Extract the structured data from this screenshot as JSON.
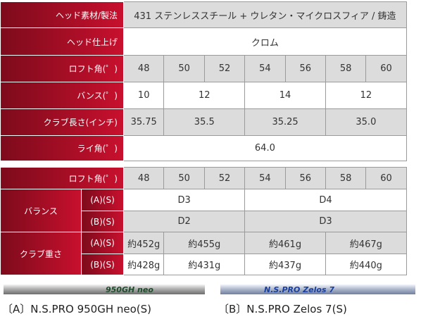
{
  "spec_table": {
    "rows": [
      {
        "label": "ヘッド素材/製法",
        "cells": [
          "431 ステンレススチール + ウレタン・マイクロスフィア / 鋳造"
        ]
      },
      {
        "label": "ヘッド仕上げ",
        "cells": [
          "クロム"
        ]
      },
      {
        "label": "ロフト角(゜)",
        "cells": [
          "48",
          "50",
          "52",
          "54",
          "56",
          "58",
          "60"
        ]
      },
      {
        "label": "バンス(゜)",
        "cells": [
          "10",
          "12",
          "14",
          "12"
        ]
      },
      {
        "label": "クラブ長さ(インチ)",
        "cells": [
          "35.75",
          "35.5",
          "35.25",
          "35.0"
        ]
      },
      {
        "label": "ライ角(゜)",
        "cells": [
          "64.0"
        ]
      }
    ]
  },
  "shaft_table": {
    "loft": {
      "label": "ロフト角(゜)",
      "cells": [
        "48",
        "50",
        "52",
        "54",
        "56",
        "58",
        "60"
      ]
    },
    "balance": {
      "label": "バランス",
      "rows": [
        {
          "label": "(A)(S)",
          "cells": [
            "D3",
            "D4"
          ]
        },
        {
          "label": "(B)(S)",
          "cells": [
            "D2",
            "D3"
          ]
        }
      ]
    },
    "weight": {
      "label": "クラブ重さ",
      "rows": [
        {
          "label": "(A)(S)",
          "cells": [
            "約452g",
            "約455g",
            "約461g",
            "約467g"
          ]
        },
        {
          "label": "(B)(S)",
          "cells": [
            "約428g",
            "約431g",
            "約437g",
            "約440g"
          ]
        }
      ]
    }
  },
  "shafts": [
    {
      "print": "950GH neo",
      "caption": "〔A〕N.S.PRO 950GH neo(S)"
    },
    {
      "print": "N.S.PRO Zelos 7",
      "caption": "〔B〕N.S.PRO Zelos 7(S)"
    }
  ]
}
